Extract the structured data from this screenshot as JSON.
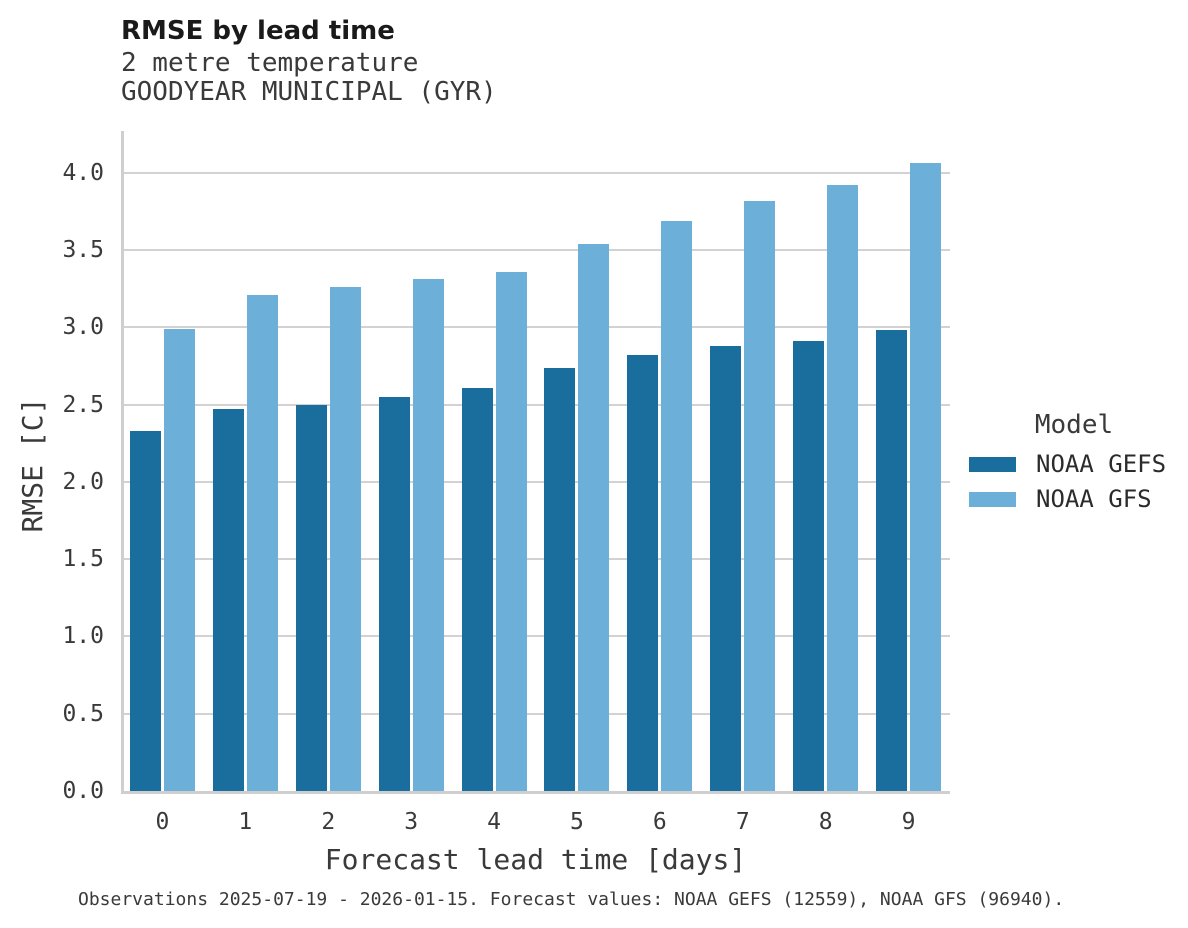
{
  "chart_data": {
    "type": "bar",
    "title": "RMSE by lead time",
    "subtitle_lines": [
      "2 metre temperature",
      "GOODYEAR MUNICIPAL (GYR)"
    ],
    "xlabel": "Forecast lead time [days]",
    "ylabel": "RMSE [C]",
    "categories": [
      "0",
      "1",
      "2",
      "3",
      "4",
      "5",
      "6",
      "7",
      "8",
      "9"
    ],
    "series": [
      {
        "name": "NOAA GEFS",
        "color": "#1a6e9e",
        "values": [
          2.33,
          2.47,
          2.5,
          2.55,
          2.61,
          2.74,
          2.82,
          2.88,
          2.91,
          2.98
        ]
      },
      {
        "name": "NOAA GFS",
        "color": "#6cb0d9",
        "values": [
          2.99,
          3.21,
          3.26,
          3.31,
          3.36,
          3.54,
          3.69,
          3.82,
          3.92,
          4.06
        ]
      }
    ],
    "ylim": [
      0.0,
      4.27
    ],
    "yticks": [
      0.0,
      0.5,
      1.0,
      1.5,
      2.0,
      2.5,
      3.0,
      3.5,
      4.0
    ],
    "grid": "horizontal",
    "legend": {
      "title": "Model",
      "position": "right"
    },
    "caption": "Observations 2025-07-19 - 2026-01-15. Forecast values: NOAA GEFS (12559), NOAA GFS (96940)."
  },
  "colors": {
    "background": "#ffffff",
    "gridline": "#d2d2d2",
    "spine": "#cfcfcf",
    "title_text": "#1a1a1a",
    "label_text": "#3a3a3a"
  }
}
